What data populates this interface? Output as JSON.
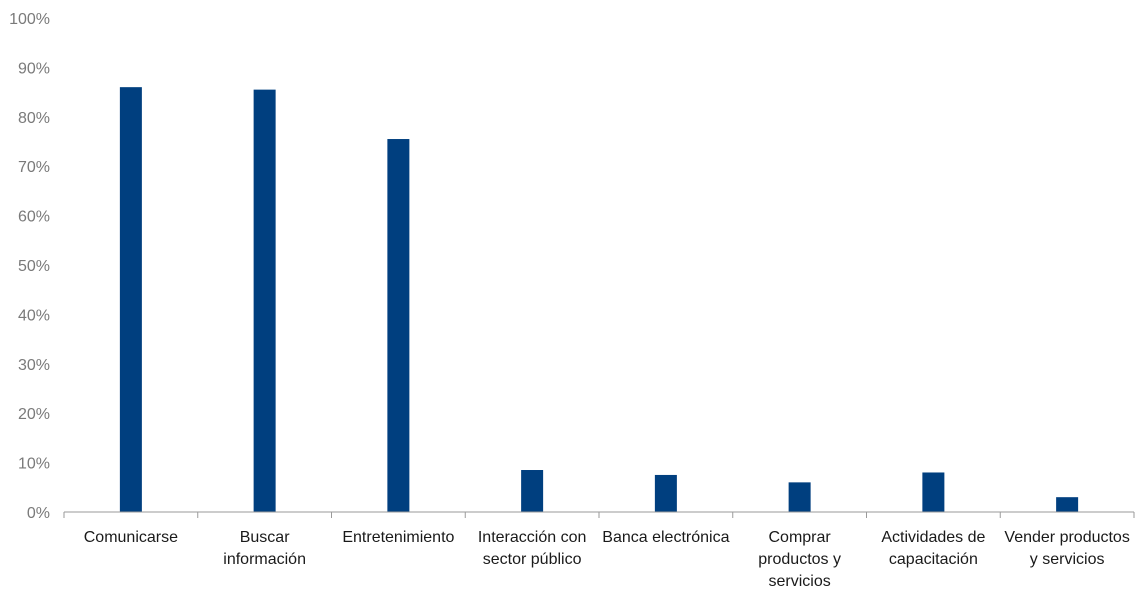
{
  "chart_data": {
    "type": "bar",
    "title": "",
    "xlabel": "",
    "ylabel": "",
    "ylim": [
      0,
      100
    ],
    "y_tick_values": [
      0,
      10,
      20,
      30,
      40,
      50,
      60,
      70,
      80,
      90,
      100
    ],
    "y_tick_labels": [
      "0%",
      "10%",
      "20%",
      "30%",
      "40%",
      "50%",
      "60%",
      "70%",
      "80%",
      "90%",
      "100%"
    ],
    "categories": [
      [
        "Comunicarse"
      ],
      [
        "Buscar",
        "información"
      ],
      [
        "Entretenimiento"
      ],
      [
        "Interacción con",
        "sector público"
      ],
      [
        "Banca electrónica"
      ],
      [
        "Comprar",
        "productos y",
        "servicios"
      ],
      [
        "Actividades de",
        "capacitación"
      ],
      [
        "Vender productos",
        "y servicios"
      ]
    ],
    "values": [
      86,
      85.5,
      75.5,
      8.5,
      7.5,
      6,
      8,
      3
    ],
    "grid": false,
    "legend": "none",
    "bar_color": "#003f7f",
    "axis_color": "#9a9a9a"
  }
}
